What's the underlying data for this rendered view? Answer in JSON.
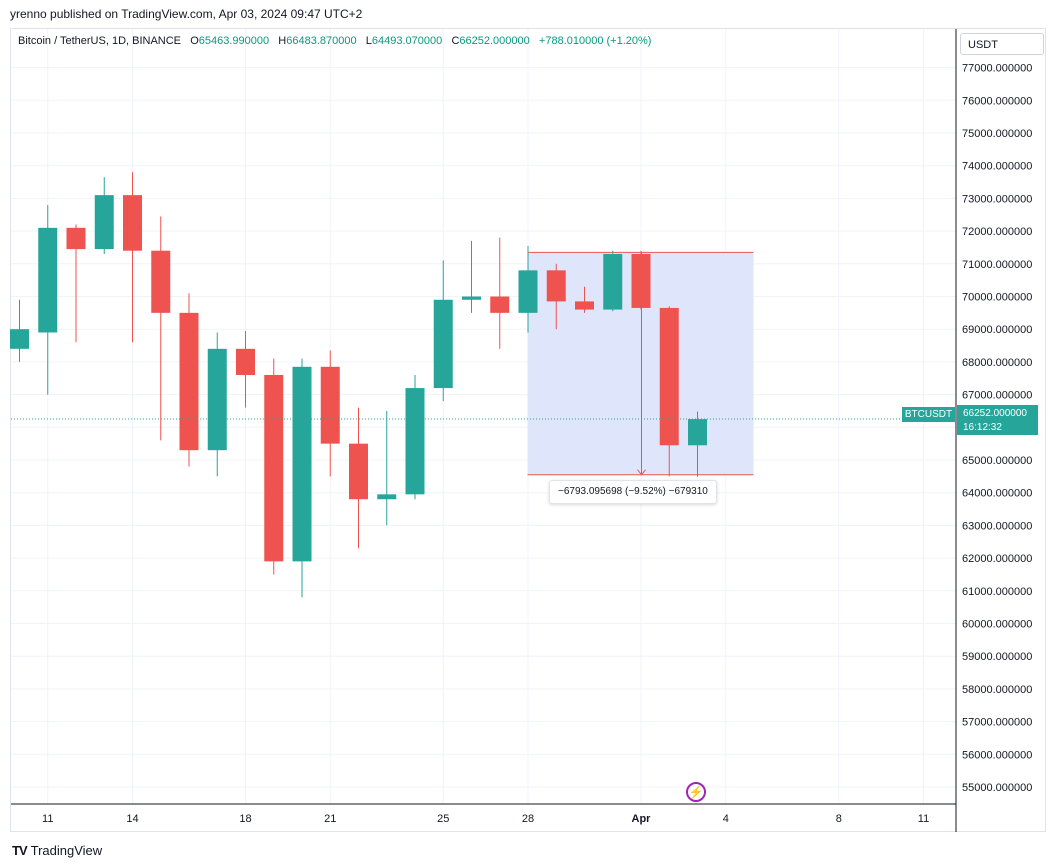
{
  "publisher_line": "yrenno published on TradingView.com, Apr 03, 2024 09:47 UTC+2",
  "legend": {
    "symbol": "Bitcoin / TetherUS, 1D, BINANCE",
    "o_label": "O",
    "o_value": "65463.990000",
    "h_label": "H",
    "h_value": "66483.870000",
    "l_label": "L",
    "l_value": "64493.070000",
    "c_label": "C",
    "c_value": "66252.000000",
    "change": "+788.010000 (+1.20%)"
  },
  "currency_button": "USDT",
  "measure_tooltip": "−6793.095698 (−9.52%) −679310",
  "last_price": {
    "symbol": "BTCUSDT",
    "price": "66252.000000",
    "countdown": "16:12:32"
  },
  "footer": {
    "logo": "TV",
    "brand": "TradingView"
  },
  "colors": {
    "up": "#26a69a",
    "down": "#ef5350",
    "grid": "#f0f3fa",
    "measure_fill": "#dde4fb",
    "measure_line": "#ef5350",
    "accent": "#9c27b0"
  },
  "chart_data": {
    "type": "candlestick",
    "ylim": [
      54500,
      77300
    ],
    "y_ticks": [
      "77000.000000",
      "76000.000000",
      "75000.000000",
      "74000.000000",
      "73000.000000",
      "72000.000000",
      "71000.000000",
      "70000.000000",
      "69000.000000",
      "68000.000000",
      "67000.000000",
      "66000.000000",
      "65000.000000",
      "64000.000000",
      "63000.000000",
      "62000.000000",
      "61000.000000",
      "60000.000000",
      "59000.000000",
      "58000.000000",
      "57000.000000",
      "56000.000000",
      "55000.000000"
    ],
    "x_ticks": [
      {
        "label": "11",
        "day": 1
      },
      {
        "label": "14",
        "day": 4
      },
      {
        "label": "18",
        "day": 8
      },
      {
        "label": "21",
        "day": 11
      },
      {
        "label": "25",
        "day": 15
      },
      {
        "label": "28",
        "day": 18
      },
      {
        "label": "Apr",
        "day": 22
      },
      {
        "label": "4",
        "day": 25
      },
      {
        "label": "8",
        "day": 29
      },
      {
        "label": "11",
        "day": 32
      }
    ],
    "candles": [
      {
        "o": 68400,
        "h": 69900,
        "l": 68000,
        "c": 69000
      },
      {
        "o": 68900,
        "h": 72800,
        "l": 67000,
        "c": 72100
      },
      {
        "o": 72100,
        "h": 72200,
        "l": 68600,
        "c": 71450
      },
      {
        "o": 71450,
        "h": 73650,
        "l": 71300,
        "c": 73100
      },
      {
        "o": 73100,
        "h": 73800,
        "l": 68600,
        "c": 71400
      },
      {
        "o": 71400,
        "h": 72450,
        "l": 65600,
        "c": 69500
      },
      {
        "o": 69500,
        "h": 70100,
        "l": 64800,
        "c": 65300
      },
      {
        "o": 65300,
        "h": 68900,
        "l": 64500,
        "c": 68400
      },
      {
        "o": 68400,
        "h": 68950,
        "l": 66600,
        "c": 67600
      },
      {
        "o": 67600,
        "h": 68100,
        "l": 61500,
        "c": 61900
      },
      {
        "o": 61900,
        "h": 68100,
        "l": 60800,
        "c": 67850
      },
      {
        "o": 67850,
        "h": 68350,
        "l": 64500,
        "c": 65500
      },
      {
        "o": 65500,
        "h": 66600,
        "l": 62300,
        "c": 63800
      },
      {
        "o": 63800,
        "h": 66500,
        "l": 63000,
        "c": 63950
      },
      {
        "o": 63950,
        "h": 67600,
        "l": 63800,
        "c": 67200
      },
      {
        "o": 67200,
        "h": 71100,
        "l": 66800,
        "c": 69900
      },
      {
        "o": 69900,
        "h": 71700,
        "l": 69500,
        "c": 70000
      },
      {
        "o": 70000,
        "h": 71800,
        "l": 68400,
        "c": 69500
      },
      {
        "o": 69500,
        "h": 71550,
        "l": 68900,
        "c": 70800
      },
      {
        "o": 70800,
        "h": 71000,
        "l": 69000,
        "c": 69850
      },
      {
        "o": 69850,
        "h": 70300,
        "l": 69500,
        "c": 69600
      },
      {
        "o": 69600,
        "h": 71400,
        "l": 69550,
        "c": 71300
      },
      {
        "o": 71300,
        "h": 71400,
        "l": 69600,
        "c": 69650
      },
      {
        "o": 69650,
        "h": 69700,
        "l": 64500,
        "c": 65450
      },
      {
        "o": 65450,
        "h": 66480,
        "l": 64490,
        "c": 66250
      }
    ],
    "measure": {
      "start_day": 18,
      "end_day": 26,
      "top": 71350,
      "bottom": 64550
    },
    "last_price_value": 66252
  }
}
